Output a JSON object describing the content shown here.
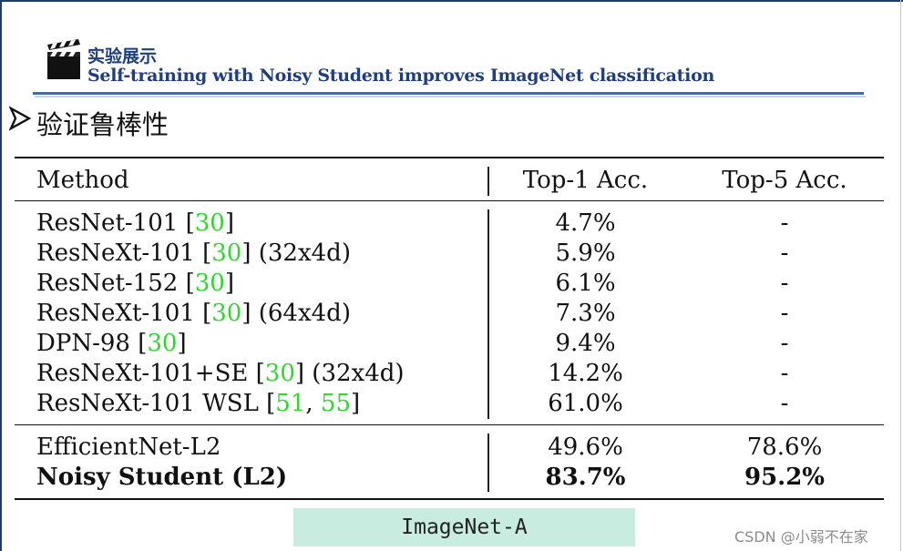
{
  "header": {
    "title": "实验展示",
    "subtitle": "Self-training with Noisy Student improves ImageNet classification",
    "icon": "clapperboard-icon"
  },
  "section": {
    "bullet_icon": "arrow-bullet-icon",
    "heading": "验证鲁棒性"
  },
  "table": {
    "columns": [
      "Method",
      "Top-1 Acc.",
      "Top-5 Acc."
    ],
    "group1": [
      {
        "method": "ResNet-101 [",
        "cites": [
          "30"
        ],
        "suffix": "]",
        "top1": "4.7%",
        "top5": "-"
      },
      {
        "method": "ResNeXt-101 [",
        "cites": [
          "30"
        ],
        "suffix": "] (32x4d)",
        "top1": "5.9%",
        "top5": "-"
      },
      {
        "method": "ResNet-152 [",
        "cites": [
          "30"
        ],
        "suffix": "]",
        "top1": "6.1%",
        "top5": "-"
      },
      {
        "method": "ResNeXt-101 [",
        "cites": [
          "30"
        ],
        "suffix": "] (64x4d)",
        "top1": "7.3%",
        "top5": "-"
      },
      {
        "method": "DPN-98 [",
        "cites": [
          "30"
        ],
        "suffix": "]",
        "top1": "9.4%",
        "top5": "-"
      },
      {
        "method": "ResNeXt-101+SE [",
        "cites": [
          "30"
        ],
        "suffix": "] (32x4d)",
        "top1": "14.2%",
        "top5": "-"
      },
      {
        "method": "ResNeXt-101 WSL [",
        "cites": [
          "51",
          "55"
        ],
        "separator": ", ",
        "suffix": "]",
        "top1": "61.0%",
        "top5": "-"
      }
    ],
    "group2": [
      {
        "method": "EfficientNet-L2",
        "top1": "49.6%",
        "top5": "78.6%",
        "bold": false
      },
      {
        "method": "Noisy Student (L2)",
        "top1": "83.7%",
        "top5": "95.2%",
        "bold": true
      }
    ]
  },
  "caption": "ImageNet-A",
  "watermark": "CSDN @小弱不在家",
  "colors": {
    "header_text": "#1f3e7a",
    "header_rule": "#2d70bf",
    "citation": "#33d433",
    "caption_bg": "#c8ede0"
  }
}
